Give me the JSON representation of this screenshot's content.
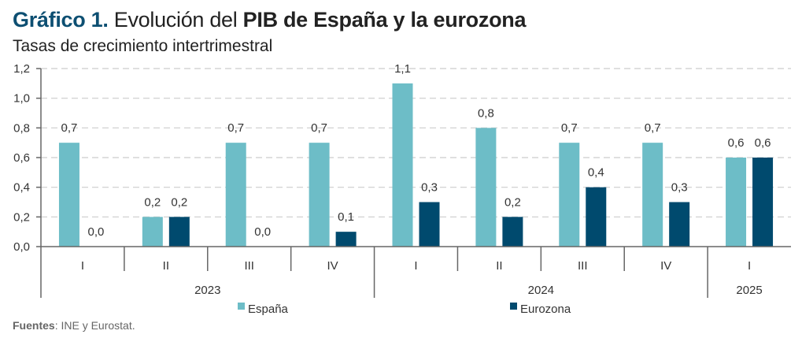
{
  "title": {
    "prefix": "Gráfico 1.",
    "part1": "Evolución del ",
    "bold": "PIB de España y la eurozona"
  },
  "subtitle": "Tasas de crecimiento intertrimestral",
  "source": {
    "label": "Fuentes",
    "text": ": INE y Eurostat."
  },
  "chart_data": {
    "type": "bar",
    "categories": [
      "I",
      "II",
      "III",
      "IV",
      "I",
      "II",
      "III",
      "IV",
      "I"
    ],
    "groups": [
      {
        "label": "2023",
        "count": 4
      },
      {
        "label": "2024",
        "count": 4
      },
      {
        "label": "2025",
        "count": 1
      }
    ],
    "series": [
      {
        "name": "España",
        "color": "#6dbdc7",
        "values": [
          0.7,
          0.2,
          0.7,
          0.7,
          1.1,
          0.8,
          0.7,
          0.7,
          0.6
        ]
      },
      {
        "name": "Eurozona",
        "color": "#004a6e",
        "values": [
          0.0,
          0.2,
          0.0,
          0.1,
          0.3,
          0.2,
          0.4,
          0.3,
          0.6
        ]
      }
    ],
    "ylim": [
      0,
      1.2
    ],
    "yticks": [
      "0,0",
      "0,2",
      "0,4",
      "0,6",
      "0,8",
      "1,0",
      "1,2"
    ],
    "grid": true,
    "legend": "bottom"
  }
}
